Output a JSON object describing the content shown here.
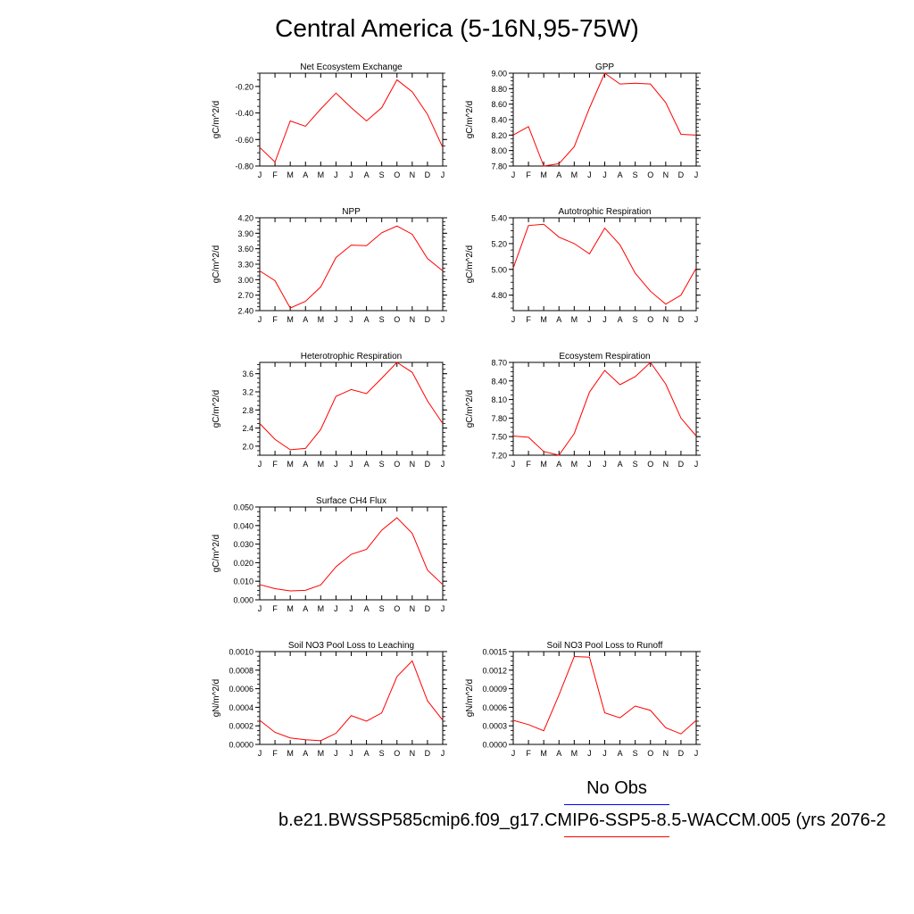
{
  "page": {
    "title": "Central America (5-16N,95-75W)"
  },
  "legend": {
    "obs_label": "No Obs",
    "obs_color": "#0000ff",
    "model_label": "b.e21.BWSSP585cmip6.f09_g17.CMIP6-SSP5-8.5-WACCM.005 (yrs 2076-2",
    "model_color": "#ff0000"
  },
  "chart_data": [
    {
      "type": "line",
      "title": "Net Ecosystem Exchange",
      "ylabel": "gC/m^2/d",
      "categories": [
        "J",
        "F",
        "M",
        "A",
        "M",
        "J",
        "J",
        "A",
        "S",
        "O",
        "N",
        "D",
        "J"
      ],
      "values": [
        -0.66,
        -0.77,
        -0.46,
        -0.5,
        -0.37,
        -0.25,
        -0.36,
        -0.46,
        -0.36,
        -0.15,
        -0.24,
        -0.41,
        -0.66
      ],
      "ylim": [
        -0.8,
        -0.1
      ],
      "yticks": [
        -0.8,
        -0.6,
        -0.4,
        -0.2
      ],
      "ytick_labels": [
        "-0.80",
        "-0.60",
        "-0.40",
        "-0.20"
      ],
      "color": "#ff0000"
    },
    {
      "type": "line",
      "title": "GPP",
      "ylabel": "gC/m^2/d",
      "categories": [
        "J",
        "F",
        "M",
        "A",
        "M",
        "J",
        "J",
        "A",
        "S",
        "O",
        "N",
        "D",
        "J"
      ],
      "values": [
        8.2,
        8.31,
        7.8,
        7.83,
        8.05,
        8.55,
        9.0,
        8.86,
        8.87,
        8.86,
        8.62,
        8.21,
        8.2
      ],
      "ylim": [
        7.8,
        9.0
      ],
      "yticks": [
        7.8,
        8.0,
        8.2,
        8.4,
        8.6,
        8.8,
        9.0
      ],
      "ytick_labels": [
        "7.80",
        "8.00",
        "8.20",
        "8.40",
        "8.60",
        "8.80",
        "9.00"
      ],
      "color": "#ff0000"
    },
    {
      "type": "line",
      "title": "NPP",
      "ylabel": "gC/m^2/d",
      "categories": [
        "J",
        "F",
        "M",
        "A",
        "M",
        "J",
        "J",
        "A",
        "S",
        "O",
        "N",
        "D",
        "J"
      ],
      "values": [
        3.17,
        2.98,
        2.45,
        2.58,
        2.86,
        3.43,
        3.67,
        3.66,
        3.91,
        4.04,
        3.88,
        3.41,
        3.17
      ],
      "ylim": [
        2.4,
        4.2
      ],
      "yticks": [
        2.4,
        2.7,
        3.0,
        3.3,
        3.6,
        3.9,
        4.2
      ],
      "ytick_labels": [
        "2.40",
        "2.70",
        "3.00",
        "3.30",
        "3.60",
        "3.90",
        "4.20"
      ],
      "color": "#ff0000"
    },
    {
      "type": "line",
      "title": "Autotrophic Respiration",
      "ylabel": "gC/m^2/d",
      "categories": [
        "J",
        "F",
        "M",
        "A",
        "M",
        "J",
        "J",
        "A",
        "S",
        "O",
        "N",
        "D",
        "J"
      ],
      "values": [
        5.01,
        5.34,
        5.35,
        5.25,
        5.2,
        5.12,
        5.32,
        5.19,
        4.97,
        4.83,
        4.73,
        4.8,
        5.01
      ],
      "ylim": [
        4.68,
        5.4
      ],
      "yticks": [
        4.8,
        5.0,
        5.2,
        5.4
      ],
      "ytick_labels": [
        "4.80",
        "5.00",
        "5.20",
        "5.40"
      ],
      "color": "#ff0000"
    },
    {
      "type": "line",
      "title": "Heterotrophic Respiration",
      "ylabel": "gC/m^2/d",
      "categories": [
        "J",
        "F",
        "M",
        "A",
        "M",
        "J",
        "J",
        "A",
        "S",
        "O",
        "N",
        "D",
        "J"
      ],
      "values": [
        2.5,
        2.15,
        1.92,
        1.95,
        2.37,
        3.1,
        3.25,
        3.16,
        3.5,
        3.85,
        3.63,
        3.0,
        2.5
      ],
      "ylim": [
        1.8,
        3.85
      ],
      "yticks": [
        2.0,
        2.4,
        2.8,
        3.2,
        3.6
      ],
      "ytick_labels": [
        "2.0",
        "2.4",
        "2.8",
        "3.2",
        "3.6"
      ],
      "color": "#ff0000"
    },
    {
      "type": "line",
      "title": "Ecosystem Respiration",
      "ylabel": "gC/m^2/d",
      "categories": [
        "J",
        "F",
        "M",
        "A",
        "M",
        "J",
        "J",
        "A",
        "S",
        "O",
        "N",
        "D",
        "J"
      ],
      "values": [
        7.51,
        7.49,
        7.26,
        7.2,
        7.55,
        8.22,
        8.57,
        8.34,
        8.47,
        8.7,
        8.35,
        7.8,
        7.51
      ],
      "ylim": [
        7.2,
        8.7
      ],
      "yticks": [
        7.2,
        7.5,
        7.8,
        8.1,
        8.4,
        8.7
      ],
      "ytick_labels": [
        "7.20",
        "7.50",
        "7.80",
        "8.10",
        "8.40",
        "8.70"
      ],
      "color": "#ff0000"
    },
    {
      "type": "line",
      "title": "Surface CH4 Flux",
      "ylabel": "gC/m^2/d",
      "categories": [
        "J",
        "F",
        "M",
        "A",
        "M",
        "J",
        "J",
        "A",
        "S",
        "O",
        "N",
        "D",
        "J"
      ],
      "values": [
        0.0082,
        0.006,
        0.0048,
        0.0051,
        0.008,
        0.0178,
        0.0245,
        0.0272,
        0.0375,
        0.0442,
        0.0358,
        0.016,
        0.0082
      ],
      "ylim": [
        0.0,
        0.05
      ],
      "yticks": [
        0.0,
        0.01,
        0.02,
        0.03,
        0.04,
        0.05
      ],
      "ytick_labels": [
        "0.000",
        "0.010",
        "0.020",
        "0.030",
        "0.040",
        "0.050"
      ],
      "color": "#ff0000"
    },
    {
      "type": "line",
      "title": "Soil NO3 Pool Loss to Leaching",
      "ylabel": "gN/m^2/d",
      "categories": [
        "J",
        "F",
        "M",
        "A",
        "M",
        "J",
        "J",
        "A",
        "S",
        "O",
        "N",
        "D",
        "J"
      ],
      "values": [
        0.00026,
        0.00013,
        7e-05,
        5e-05,
        4e-05,
        0.00012,
        0.00031,
        0.00025,
        0.00034,
        0.00073,
        0.0009,
        0.00047,
        0.00026
      ],
      "ylim": [
        0.0,
        0.001
      ],
      "yticks": [
        0.0,
        0.0002,
        0.0004,
        0.0006,
        0.0008,
        0.001
      ],
      "ytick_labels": [
        "0.0000",
        "0.0002",
        "0.0004",
        "0.0006",
        "0.0008",
        "0.0010"
      ],
      "color": "#ff0000"
    },
    {
      "type": "line",
      "title": "Soil NO3 Pool Loss to Runoff",
      "ylabel": "gN/m^2/d",
      "categories": [
        "J",
        "F",
        "M",
        "A",
        "M",
        "J",
        "J",
        "A",
        "S",
        "O",
        "N",
        "D",
        "J"
      ],
      "values": [
        0.00039,
        0.00032,
        0.00022,
        0.0008,
        0.00142,
        0.00141,
        0.00051,
        0.00043,
        0.00062,
        0.00055,
        0.00027,
        0.00017,
        0.00039
      ],
      "ylim": [
        0.0,
        0.0015
      ],
      "yticks": [
        0.0,
        0.0003,
        0.0006,
        0.0009,
        0.0012,
        0.0015
      ],
      "ytick_labels": [
        "0.0000",
        "0.0003",
        "0.0006",
        "0.0009",
        "0.0012",
        "0.0015"
      ],
      "color": "#ff0000"
    }
  ]
}
